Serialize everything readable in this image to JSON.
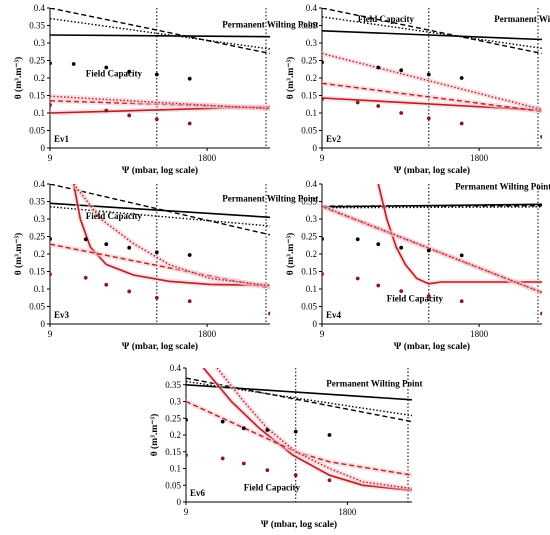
{
  "figure": {
    "title": ""
  },
  "colors": {
    "black": "#000000",
    "red": "#b22222",
    "pink": "#f4c2cc",
    "darkred": "#8b1a1a"
  },
  "chart_data": [
    {
      "id": "Ev1",
      "type": "line",
      "panel_label": "Ev1",
      "xlabel": "Ψ (mbar, log scale)",
      "ylabel": "θ (m³.m⁻³)",
      "x_scale": "log",
      "xlim": [
        9,
        15000
      ],
      "ylim": [
        0,
        0.4
      ],
      "xticks": [
        9,
        1800
      ],
      "yticks": [
        0,
        0.05,
        0.1,
        0.15,
        0.2,
        0.25,
        0.3,
        0.35,
        0.4
      ],
      "field_capacity": 330,
      "pwp": 15000,
      "annotations": [
        {
          "text": "Field Capacity",
          "x": 30,
          "y": 0.205
        },
        {
          "text": "Permanent Wilting Point",
          "x": 3000,
          "y": 0.345
        }
      ],
      "series": [
        {
          "style": "black-solid",
          "x": [
            9,
            15000
          ],
          "y": [
            0.323,
            0.318
          ]
        },
        {
          "style": "black-dashed",
          "x": [
            9,
            15000
          ],
          "y": [
            0.4,
            0.27
          ]
        },
        {
          "style": "black-dotted",
          "x": [
            9,
            15000
          ],
          "y": [
            0.37,
            0.283
          ]
        },
        {
          "style": "black-points",
          "x": [
            9,
            20,
            60,
            130,
            330,
            1000
          ],
          "y": [
            0.242,
            0.24,
            0.23,
            0.218,
            0.21,
            0.198
          ]
        },
        {
          "style": "red-solid",
          "x": [
            9,
            15000
          ],
          "y": [
            0.1,
            0.118
          ]
        },
        {
          "style": "red-dashed",
          "x": [
            9,
            15000
          ],
          "y": [
            0.135,
            0.115
          ]
        },
        {
          "style": "red-dotted",
          "x": [
            9,
            15000
          ],
          "y": [
            0.148,
            0.112
          ]
        },
        {
          "style": "red-points",
          "x": [
            9,
            60,
            130,
            330,
            1000
          ],
          "y": [
            0.123,
            0.107,
            0.093,
            0.082,
            0.07
          ]
        }
      ]
    },
    {
      "id": "Ev2",
      "type": "line",
      "panel_label": "Ev2",
      "xlabel": "Ψ (mbar, log scale)",
      "ylabel": "θ (m³.m⁻³)",
      "x_scale": "log",
      "xlim": [
        9,
        15000
      ],
      "ylim": [
        0,
        0.4
      ],
      "xticks": [
        9,
        1800
      ],
      "yticks": [
        0,
        0.05,
        0.1,
        0.15,
        0.2,
        0.25,
        0.3,
        0.35,
        0.4
      ],
      "field_capacity": 330,
      "pwp": 15000,
      "annotations": [
        {
          "text": "Field Capacity",
          "x": 30,
          "y": 0.36
        },
        {
          "text": "Permanent Wilting Point",
          "x": 3000,
          "y": 0.36
        }
      ],
      "series": [
        {
          "style": "black-solid",
          "x": [
            9,
            15000
          ],
          "y": [
            0.335,
            0.31
          ]
        },
        {
          "style": "black-dashed",
          "x": [
            9,
            15000
          ],
          "y": [
            0.4,
            0.27
          ]
        },
        {
          "style": "black-dotted",
          "x": [
            9,
            15000
          ],
          "y": [
            0.375,
            0.285
          ]
        },
        {
          "style": "black-points",
          "x": [
            9,
            60,
            130,
            330,
            1000
          ],
          "y": [
            0.245,
            0.23,
            0.222,
            0.21,
            0.2
          ]
        },
        {
          "style": "red-solid",
          "x": [
            9,
            15000
          ],
          "y": [
            0.143,
            0.108
          ]
        },
        {
          "style": "red-dashed",
          "x": [
            9,
            15000
          ],
          "y": [
            0.185,
            0.105
          ]
        },
        {
          "style": "red-dotted",
          "x": [
            9,
            15000
          ],
          "y": [
            0.27,
            0.11
          ]
        },
        {
          "style": "red-points",
          "x": [
            9,
            30,
            60,
            130,
            330,
            1000,
            15000
          ],
          "y": [
            0.14,
            0.13,
            0.12,
            0.1,
            0.085,
            0.07,
            0.032
          ]
        }
      ]
    },
    {
      "id": "Ev3",
      "type": "line",
      "panel_label": "Ev3",
      "xlabel": "Ψ (mbar, log scale)",
      "ylabel": "θ (m³.m⁻³)",
      "x_scale": "log",
      "xlim": [
        9,
        15000
      ],
      "ylim": [
        0,
        0.4
      ],
      "xticks": [
        9,
        1800
      ],
      "yticks": [
        0,
        0.05,
        0.1,
        0.15,
        0.2,
        0.25,
        0.3,
        0.35,
        0.4
      ],
      "field_capacity": 330,
      "pwp": 15000,
      "annotations": [
        {
          "text": "Field Capacity",
          "x": 30,
          "y": 0.3
        },
        {
          "text": "Permanent Wilting Point",
          "x": 3000,
          "y": 0.35
        }
      ],
      "series": [
        {
          "style": "black-solid",
          "x": [
            9,
            15000
          ],
          "y": [
            0.345,
            0.305
          ]
        },
        {
          "style": "black-dashed",
          "x": [
            9,
            15000
          ],
          "y": [
            0.4,
            0.255
          ]
        },
        {
          "style": "black-dotted",
          "x": [
            9,
            15000
          ],
          "y": [
            0.335,
            0.28
          ]
        },
        {
          "style": "black-points",
          "x": [
            9,
            30,
            60,
            130,
            330,
            1000
          ],
          "y": [
            0.243,
            0.242,
            0.228,
            0.218,
            0.205,
            0.197
          ]
        },
        {
          "style": "red-solid",
          "x": [
            20,
            25,
            35,
            60,
            150,
            500,
            2000,
            15000
          ],
          "y": [
            0.4,
            0.3,
            0.22,
            0.17,
            0.14,
            0.122,
            0.113,
            0.11
          ]
        },
        {
          "style": "red-dashed",
          "x": [
            9,
            15000
          ],
          "y": [
            0.228,
            0.103
          ]
        },
        {
          "style": "red-dotted",
          "x": [
            20,
            50,
            150,
            500,
            2000,
            15000
          ],
          "y": [
            0.4,
            0.3,
            0.23,
            0.17,
            0.13,
            0.11
          ]
        },
        {
          "style": "red-points",
          "x": [
            9,
            30,
            60,
            130,
            330,
            1000,
            15000
          ],
          "y": [
            0.142,
            0.132,
            0.112,
            0.093,
            0.075,
            0.065,
            0.03
          ]
        }
      ]
    },
    {
      "id": "Ev4",
      "type": "line",
      "panel_label": "Ev4",
      "xlabel": "Ψ (mbar, log scale)",
      "ylabel": "θ (m³.m⁻³)",
      "x_scale": "log",
      "xlim": [
        9,
        15000
      ],
      "ylim": [
        0,
        0.4
      ],
      "xticks": [
        9,
        1800
      ],
      "yticks": [
        0,
        0.05,
        0.1,
        0.15,
        0.2,
        0.25,
        0.3,
        0.35,
        0.4
      ],
      "field_capacity": 330,
      "pwp": 15000,
      "annotations": [
        {
          "text": "Field Capacity",
          "x": 80,
          "y": 0.065
        },
        {
          "text": "Permanent Wilting Point",
          "x": 800,
          "y": 0.385
        }
      ],
      "series": [
        {
          "style": "black-solid",
          "x": [
            9,
            15000
          ],
          "y": [
            0.335,
            0.342
          ]
        },
        {
          "style": "black-dashed",
          "x": [
            9,
            15000
          ],
          "y": [
            0.337,
            0.338
          ]
        },
        {
          "style": "black-dotted",
          "x": [
            9,
            15000
          ],
          "y": [
            0.332,
            0.335
          ]
        },
        {
          "style": "black-points",
          "x": [
            9,
            30,
            60,
            130,
            330,
            1000
          ],
          "y": [
            0.243,
            0.242,
            0.228,
            0.218,
            0.21,
            0.196
          ]
        },
        {
          "style": "red-solid",
          "x": [
            60,
            80,
            110,
            150,
            220,
            330,
            500,
            15000
          ],
          "y": [
            0.4,
            0.3,
            0.22,
            0.17,
            0.13,
            0.115,
            0.12,
            0.12
          ]
        },
        {
          "style": "red-dashed",
          "x": [
            9,
            15000
          ],
          "y": [
            0.335,
            0.09
          ]
        },
        {
          "style": "red-dotted",
          "x": [
            9,
            15000
          ],
          "y": [
            0.337,
            0.09
          ]
        },
        {
          "style": "red-points",
          "x": [
            9,
            30,
            60,
            130,
            330,
            1000,
            15000
          ],
          "y": [
            0.143,
            0.13,
            0.11,
            0.094,
            0.08,
            0.065,
            0.03
          ]
        }
      ]
    },
    {
      "id": "Ev6",
      "type": "line",
      "panel_label": "Ev6",
      "xlabel": "Ψ (mbar, log scale)",
      "ylabel": "θ (m³.m⁻³)",
      "x_scale": "log",
      "xlim": [
        9,
        15000
      ],
      "ylim": [
        0,
        0.4
      ],
      "xticks": [
        9,
        1800
      ],
      "yticks": [
        0,
        0.05,
        0.1,
        0.15,
        0.2,
        0.25,
        0.3,
        0.35,
        0.4
      ],
      "field_capacity": 330,
      "pwp": 15000,
      "annotations": [
        {
          "text": "Field Capacity",
          "x": 60,
          "y": 0.035
        },
        {
          "text": "Permanent Wilting Point",
          "x": 900,
          "y": 0.345
        }
      ],
      "series": [
        {
          "style": "black-solid",
          "x": [
            9,
            15000
          ],
          "y": [
            0.35,
            0.305
          ]
        },
        {
          "style": "black-dashed",
          "x": [
            9,
            15000
          ],
          "y": [
            0.37,
            0.24
          ]
        },
        {
          "style": "black-dotted",
          "x": [
            9,
            15000
          ],
          "y": [
            0.36,
            0.258
          ]
        },
        {
          "style": "black-points",
          "x": [
            9,
            30,
            60,
            130,
            330,
            1000
          ],
          "y": [
            0.245,
            0.24,
            0.22,
            0.215,
            0.21,
            0.2
          ]
        },
        {
          "style": "red-solid",
          "x": [
            16,
            40,
            100,
            300,
            1000,
            3000,
            15000
          ],
          "y": [
            0.4,
            0.3,
            0.22,
            0.14,
            0.08,
            0.05,
            0.035
          ]
        },
        {
          "style": "red-dashed",
          "x": [
            9,
            30,
            100,
            330,
            1000,
            15000
          ],
          "y": [
            0.3,
            0.25,
            0.2,
            0.15,
            0.12,
            0.08
          ]
        },
        {
          "style": "red-dotted",
          "x": [
            25,
            60,
            130,
            330,
            1000,
            3000,
            15000
          ],
          "y": [
            0.4,
            0.3,
            0.22,
            0.15,
            0.1,
            0.06,
            0.04
          ]
        },
        {
          "style": "red-points",
          "x": [
            9,
            30,
            60,
            130,
            330,
            1000
          ],
          "y": [
            0.14,
            0.13,
            0.115,
            0.095,
            0.08,
            0.065
          ]
        }
      ]
    }
  ]
}
